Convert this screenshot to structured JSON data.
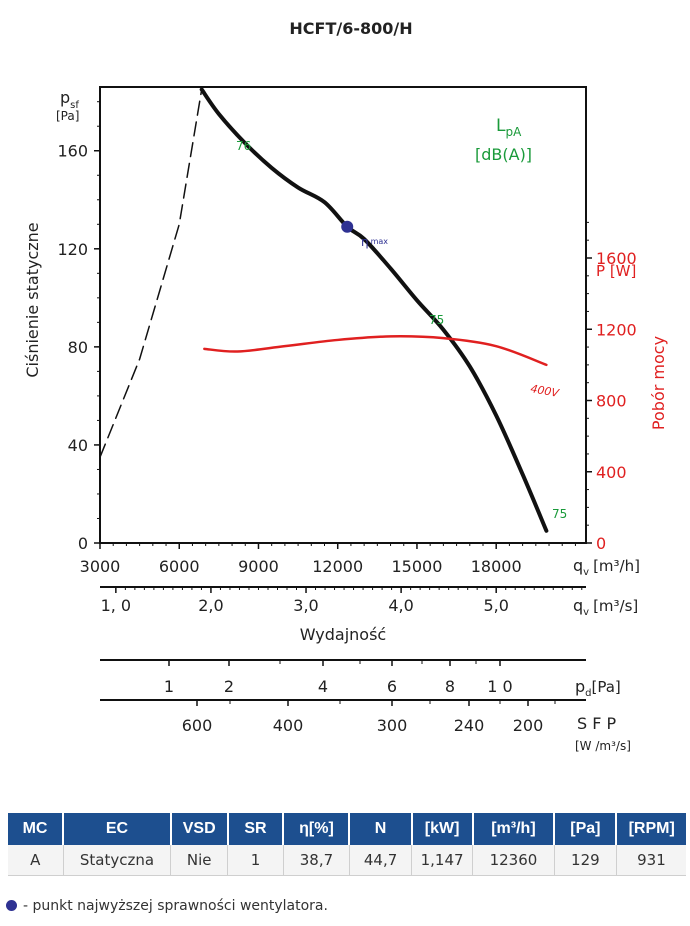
{
  "chart_data": {
    "type": "line",
    "title": "HCFT/6-800/H",
    "y_left_label_main": "p",
    "y_left_label_sub": "sf",
    "y_left_unit": "[Pa]",
    "y_left_title": "Ciśnienie statyczne",
    "y_left_ticks": [
      0,
      40,
      80,
      120,
      160
    ],
    "ylim": [
      0,
      186
    ],
    "y_right_label": "P [W]",
    "y_right_title": "Pobór mocy",
    "y_right_ticks": [
      0,
      400,
      800,
      1200,
      1600
    ],
    "y_right_lim": [
      0,
      2560
    ],
    "x_label_1": "q",
    "x_label_1_sub": "v",
    "x_unit_1": "[m³/h]",
    "x_ticks_1": [
      "3000",
      "6000",
      "9000",
      "12000",
      "15000",
      "18000"
    ],
    "xlim": [
      3000,
      21400
    ],
    "x_label_2": "q",
    "x_label_2_sub": "v",
    "x_unit_2": "[m³/s]",
    "x_ticks_2": [
      "1, 0",
      "2,0",
      "3,0",
      "4,0",
      "5,0"
    ],
    "x_ticks_2_values": [
      1.0,
      2.0,
      3.0,
      4.0,
      5.0
    ],
    "x_title": "Wydajność",
    "pd_label": "p",
    "pd_label_sub": "d",
    "pd_unit": "[Pa]",
    "pd_ticks": [
      "1",
      "2",
      "4",
      "6",
      "8",
      "1 0"
    ],
    "sfp_label": "S F P",
    "sfp_unit": "[W /m³/s]",
    "sfp_ticks": [
      "600",
      "400",
      "300",
      "240",
      "200"
    ],
    "lpa_label": "L",
    "lpa_sub": "pA",
    "lpa_unit": "[dB(A)]",
    "series": [
      {
        "name": "pressure",
        "color": "#111111",
        "x": [
          6850,
          7500,
          8500,
          9500,
          10500,
          11500,
          12360,
          13000,
          14000,
          15000,
          16000,
          17000,
          18000,
          19000,
          19900
        ],
        "values": [
          185,
          175,
          163,
          153,
          145,
          139,
          129,
          124,
          112,
          99,
          87,
          72,
          52,
          28,
          5
        ]
      },
      {
        "name": "pressure-unstable",
        "color": "#111111",
        "dashed": true,
        "x": [
          3000,
          4500,
          6000,
          6850
        ],
        "values": [
          35,
          75,
          130,
          185
        ]
      },
      {
        "name": "power 400V",
        "axis": "right",
        "color": "#e02020",
        "x": [
          6950,
          8200,
          10000,
          12000,
          14000,
          16000,
          18000,
          19900
        ],
        "values": [
          1090,
          1075,
          1105,
          1140,
          1160,
          1150,
          1105,
          1000
        ]
      }
    ],
    "annotations": {
      "db_76": "76",
      "db_75a": "75",
      "db_75b": "75",
      "eta_max": "η",
      "eta_max_sub": "max",
      "eta_max_point": {
        "x": 12360,
        "y": 129
      },
      "v400": "400V"
    }
  },
  "table": {
    "headers": [
      "MC",
      "EC",
      "VSD",
      "SR",
      "η[%]",
      "N",
      "[kW]",
      "[m³/h]",
      "[Pa]",
      "[RPM]"
    ],
    "row": [
      "A",
      "Statyczna",
      "Nie",
      "1",
      "38,7",
      "44,7",
      "1,147",
      "12360",
      "129",
      "931"
    ]
  },
  "footnote": "- punkt najwyższej sprawności wentylatora."
}
